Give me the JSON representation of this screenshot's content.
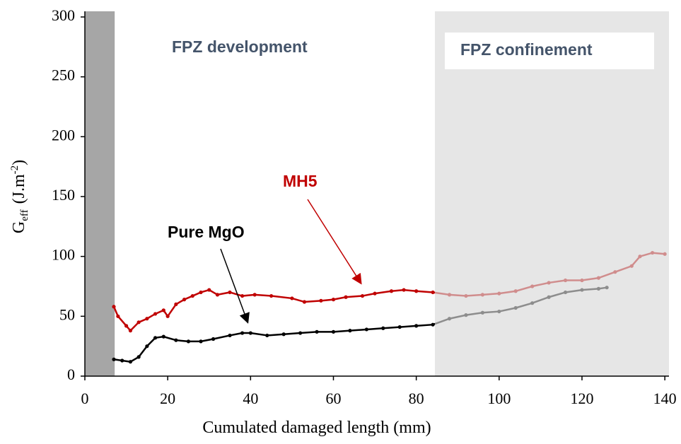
{
  "chart_data": {
    "type": "line",
    "x_label": "Cumulated damaged length (mm)",
    "y_label": {
      "main": "G",
      "sub": "eff",
      "unit": "(J.m",
      "sup": "-2",
      "end": ")"
    },
    "xlim": [
      0,
      141
    ],
    "ylim": [
      0,
      300
    ],
    "xticks": [
      0,
      20,
      40,
      60,
      80,
      100,
      120,
      140
    ],
    "yticks": [
      0,
      50,
      100,
      150,
      200,
      250,
      300
    ],
    "regions": [
      {
        "xlim": [
          0,
          7.2
        ],
        "color": "#a6a6a6"
      },
      {
        "xlim": [
          84.5,
          141
        ],
        "color": "#d9d9d9",
        "label": "FPZ confinement"
      }
    ],
    "annotations": [
      "FPZ development"
    ],
    "series": [
      {
        "name": "MH5",
        "color": "#c00000",
        "x": [
          7,
          8,
          10,
          11,
          13,
          15,
          17,
          19,
          20,
          22,
          24,
          26,
          28,
          30,
          32,
          35,
          38,
          41,
          45,
          50,
          53,
          57,
          60,
          63,
          67,
          70,
          74,
          77,
          80,
          84,
          88,
          92,
          96,
          100,
          104,
          108,
          112,
          116,
          120,
          124,
          128,
          132,
          134,
          137,
          140
        ],
        "values": [
          58,
          50,
          42,
          38,
          45,
          48,
          52,
          55,
          50,
          60,
          64,
          67,
          70,
          72,
          68,
          70,
          67,
          68,
          67,
          65,
          62,
          63,
          64,
          66,
          67,
          69,
          71,
          72,
          71,
          70,
          68,
          67,
          68,
          69,
          71,
          75,
          78,
          80,
          80,
          82,
          87,
          92,
          100,
          103,
          102
        ]
      },
      {
        "name": "Pure MgO",
        "color": "#000000",
        "x": [
          7,
          9,
          11,
          13,
          15,
          17,
          19,
          22,
          25,
          28,
          31,
          35,
          38,
          40,
          44,
          48,
          52,
          56,
          60,
          64,
          68,
          72,
          76,
          80,
          84,
          88,
          92,
          96,
          100,
          104,
          108,
          112,
          116,
          120,
          124,
          126
        ],
        "values": [
          14,
          13,
          12,
          16,
          25,
          32,
          33,
          30,
          29,
          29,
          31,
          34,
          36,
          36,
          34,
          35,
          36,
          37,
          37,
          38,
          39,
          40,
          41,
          42,
          43,
          48,
          51,
          53,
          54,
          57,
          61,
          66,
          70,
          72,
          73,
          74
        ]
      }
    ]
  }
}
